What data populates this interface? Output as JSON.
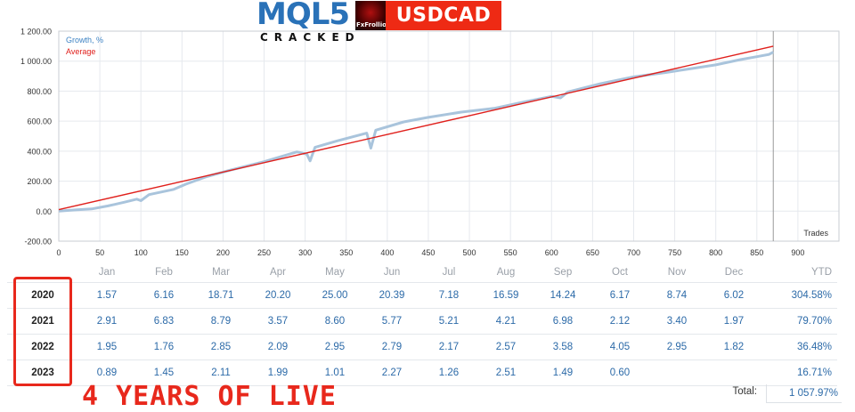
{
  "header": {
    "logo_text": "MQL5",
    "logo_subtitle": "CRACKED",
    "avatar_text": "FxFrolliove",
    "symbol": "USDCAD"
  },
  "chart_data": {
    "type": "line",
    "xlabel": "Trades",
    "xlim": [
      0,
      950
    ],
    "ylim": [
      -200,
      1200
    ],
    "x_ticks": [
      0,
      50,
      100,
      150,
      200,
      250,
      300,
      350,
      400,
      450,
      500,
      550,
      600,
      650,
      700,
      750,
      800,
      850,
      900
    ],
    "y_ticks": [
      -200,
      0,
      200,
      400,
      600,
      800,
      1000,
      1200
    ],
    "y_tick_labels": [
      "-200.00",
      "0.00",
      "200.00",
      "400.00",
      "600.00",
      "800.00",
      "1 000.00",
      "1 200.00"
    ],
    "grid": true,
    "legend": "top-left",
    "marker_x": 870,
    "series": [
      {
        "name": "Growth, %",
        "color": "#a9c4dc",
        "x": [
          0,
          20,
          40,
          60,
          80,
          95,
          100,
          110,
          140,
          155,
          180,
          210,
          250,
          290,
          302,
          306,
          312,
          340,
          375,
          380,
          386,
          420,
          450,
          490,
          530,
          560,
          600,
          611,
          620,
          660,
          700,
          740,
          770,
          800,
          830,
          850,
          865,
          870
        ],
        "y": [
          0,
          8,
          15,
          35,
          60,
          80,
          70,
          110,
          145,
          180,
          230,
          275,
          330,
          395,
          380,
          335,
          425,
          470,
          520,
          420,
          540,
          595,
          625,
          660,
          685,
          720,
          765,
          755,
          795,
          850,
          895,
          925,
          950,
          975,
          1010,
          1030,
          1045,
          1060
        ]
      },
      {
        "name": "Average",
        "color": "#e0201c",
        "x": [
          0,
          870
        ],
        "y": [
          10,
          1100
        ]
      }
    ]
  },
  "table": {
    "months": [
      "Jan",
      "Feb",
      "Mar",
      "Apr",
      "May",
      "Jun",
      "Jul",
      "Aug",
      "Sep",
      "Oct",
      "Nov",
      "Dec"
    ],
    "ytd_header": "YTD",
    "rows": [
      {
        "year": "2020",
        "values": [
          "1.57",
          "6.16",
          "18.71",
          "20.20",
          "25.00",
          "20.39",
          "7.18",
          "16.59",
          "14.24",
          "6.17",
          "8.74",
          "6.02"
        ],
        "ytd": "304.58%"
      },
      {
        "year": "2021",
        "values": [
          "2.91",
          "6.83",
          "8.79",
          "3.57",
          "8.60",
          "5.77",
          "5.21",
          "4.21",
          "6.98",
          "2.12",
          "3.40",
          "1.97"
        ],
        "ytd": "79.70%"
      },
      {
        "year": "2022",
        "values": [
          "1.95",
          "1.76",
          "2.85",
          "2.09",
          "2.95",
          "2.79",
          "2.17",
          "2.57",
          "3.58",
          "4.05",
          "2.95",
          "1.82"
        ],
        "ytd": "36.48%"
      },
      {
        "year": "2023",
        "values": [
          "0.89",
          "1.45",
          "2.11",
          "1.99",
          "1.01",
          "2.27",
          "1.26",
          "2.51",
          "1.49",
          "0.60",
          "",
          ""
        ],
        "ytd": "16.71%"
      }
    ],
    "total_label": "Total:",
    "total_value": "1 057.97%"
  },
  "banner": {
    "text": "4 YEARS OF LIVE",
    "color": "#e8281c"
  }
}
